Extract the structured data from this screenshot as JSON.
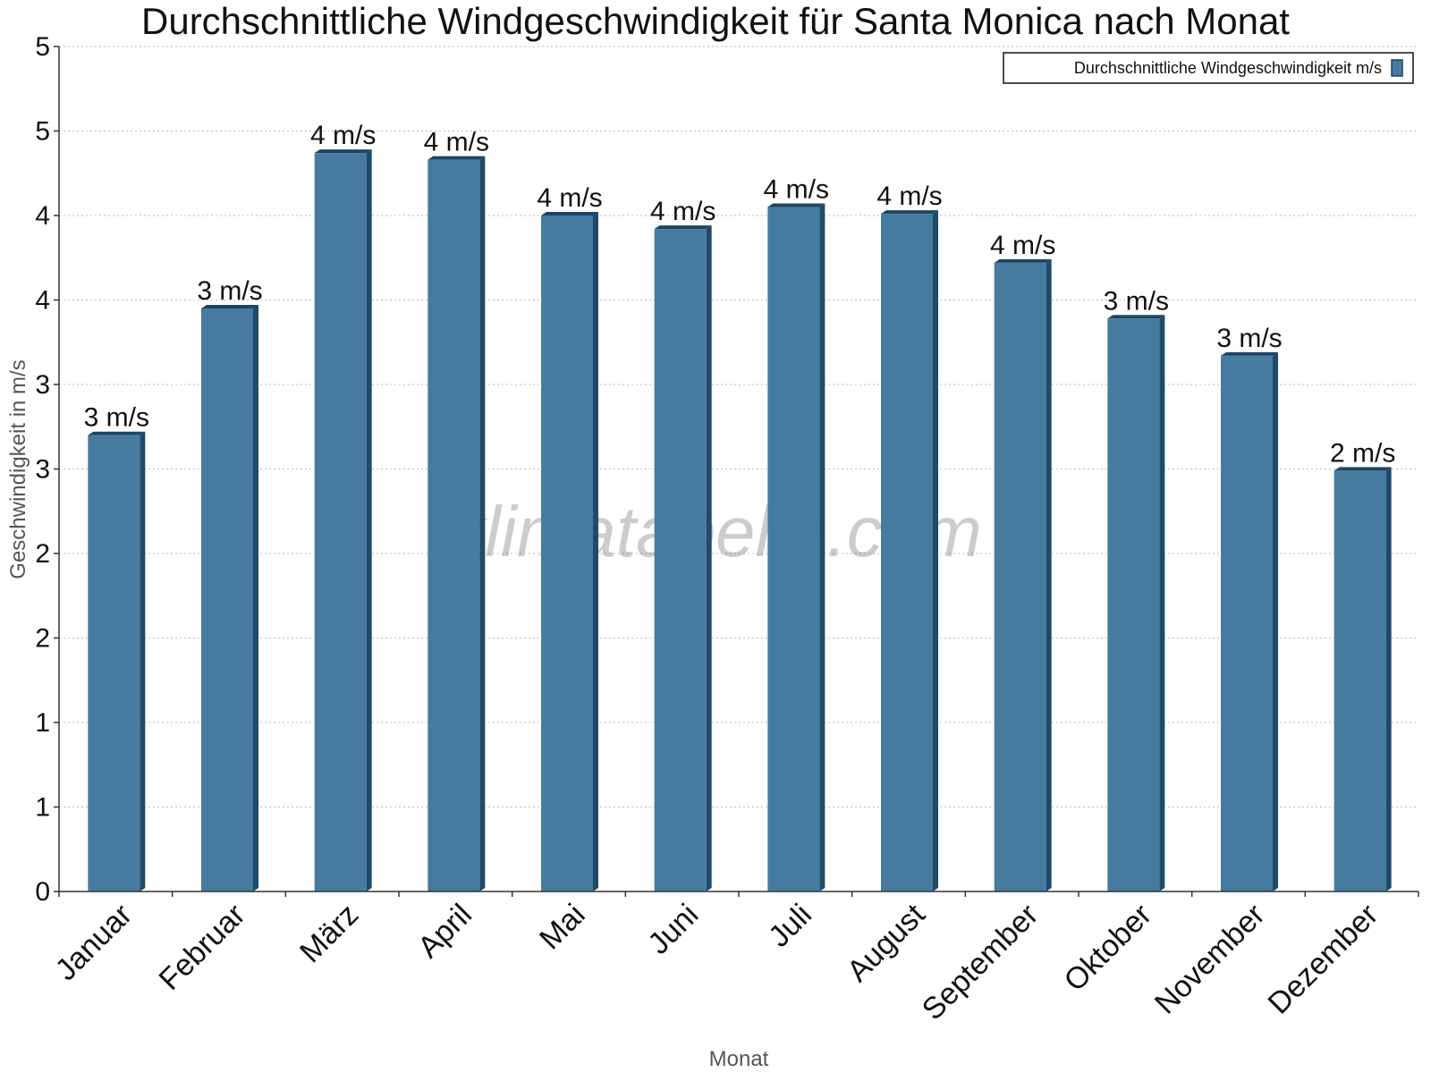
{
  "chart_data": {
    "type": "bar",
    "title": "Durchschnittliche Windgeschwindigkeit für Santa Monica nach Monat",
    "xlabel": "Monat",
    "ylabel": "Geschwindigkeit in m/s",
    "watermark": "klimatabelle.com",
    "categories": [
      "Januar",
      "Februar",
      "März",
      "April",
      "Mai",
      "Juni",
      "Juli",
      "August",
      "September",
      "Oktober",
      "November",
      "Dezember"
    ],
    "series": [
      {
        "name": "Durchschnittliche Windgeschwindigkeit m/s",
        "values": [
          2.7,
          3.45,
          4.37,
          4.33,
          4.0,
          3.92,
          4.05,
          4.01,
          3.72,
          3.39,
          3.17,
          2.49
        ],
        "labels": [
          "3 m/s",
          "3 m/s",
          "4 m/s",
          "4 m/s",
          "4 m/s",
          "4 m/s",
          "4 m/s",
          "4 m/s",
          "4 m/s",
          "3 m/s",
          "3 m/s",
          "2 m/s"
        ]
      }
    ],
    "ylim": [
      0,
      5
    ],
    "yticks": [
      0,
      0.5,
      1,
      1.5,
      2,
      2.5,
      3,
      3.5,
      4,
      4.5,
      5
    ],
    "ytick_labels": [
      "0",
      "1",
      "1",
      "2",
      "2",
      "3",
      "3",
      "4",
      "4",
      "5",
      "5"
    ],
    "grid": true,
    "legend_position": "top-right",
    "colors": {
      "bar": "#467b9f",
      "bar_side": "#1f4a6a",
      "bar_top": "#1c4565"
    }
  }
}
